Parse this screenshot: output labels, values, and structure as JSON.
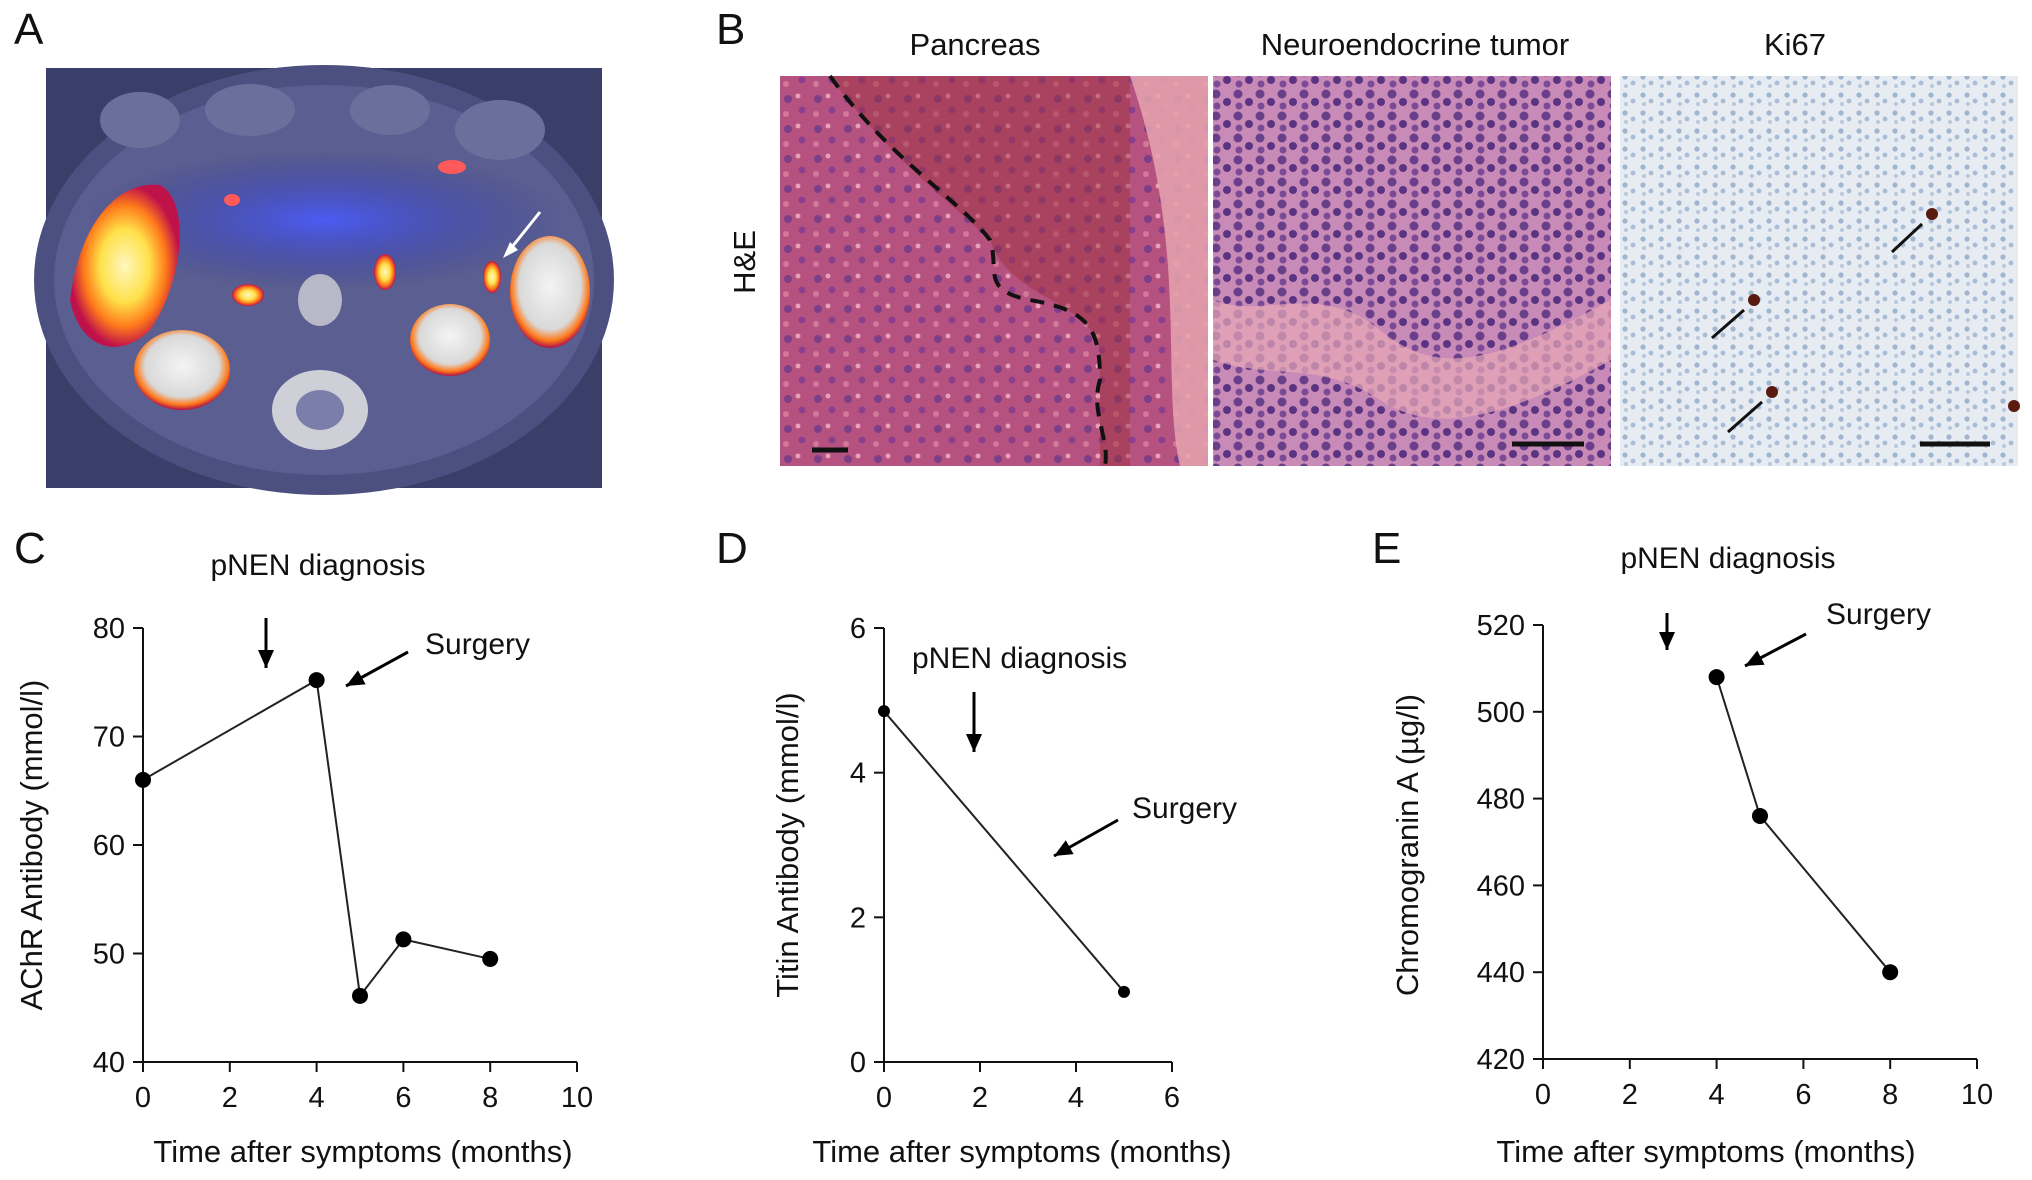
{
  "labels": {
    "A": "A",
    "B": "B",
    "C": "C",
    "D": "D",
    "E": "E"
  },
  "histology": {
    "row_label": "H&E",
    "columns": [
      "Pancreas",
      "Neuroendocrine tumor",
      "Ki67"
    ]
  },
  "colors": {
    "scan_bg": "#3a3f6a",
    "pancreas": "#b5527f",
    "tumor": "#8b4d92",
    "ki67": "#dfe6ee",
    "hot": "#ffe14a"
  },
  "chart_data": [
    {
      "id": "C",
      "type": "line",
      "x": [
        0,
        4,
        5,
        6,
        8
      ],
      "y": [
        66,
        75.2,
        46.1,
        51.3,
        49.5
      ],
      "xlabel": "Time after symptoms (months)",
      "ylabel": "AChR Antibody (mmol/l)",
      "xlim": [
        0,
        10
      ],
      "ylim": [
        40,
        80
      ],
      "xticks": [
        0,
        2,
        4,
        6,
        8,
        10
      ],
      "yticks": [
        40,
        50,
        60,
        70,
        80
      ],
      "annotations": [
        {
          "text": "pNEN diagnosis",
          "x": 2.9
        },
        {
          "text": "Surgery",
          "x": 4.6
        }
      ]
    },
    {
      "id": "D",
      "type": "line",
      "x": [
        0,
        5
      ],
      "y": [
        4.85,
        0.97
      ],
      "xlabel": "Time after symptoms (months)",
      "ylabel": "Titin Antibody (mmol/l)",
      "xlim": [
        0,
        6
      ],
      "ylim": [
        0,
        6
      ],
      "xticks": [
        0,
        2,
        4,
        6
      ],
      "yticks": [
        0,
        2,
        4,
        6
      ],
      "annotations": [
        {
          "text": "pNEN diagnosis",
          "x": 1.9
        },
        {
          "text": "Surgery",
          "x": 3.5
        }
      ]
    },
    {
      "id": "E",
      "type": "line",
      "x": [
        4,
        5,
        8
      ],
      "y": [
        508,
        476,
        440
      ],
      "xlabel": "Time after symptoms (months)",
      "ylabel": "Chromogranin A (µg/l)",
      "xlim": [
        0,
        10
      ],
      "ylim": [
        420,
        520
      ],
      "xticks": [
        0,
        2,
        4,
        6,
        8,
        10
      ],
      "yticks": [
        420,
        440,
        460,
        480,
        500,
        520
      ],
      "annotations": [
        {
          "text": "pNEN diagnosis",
          "x": 2.9
        },
        {
          "text": "Surgery",
          "x": 4.3
        }
      ]
    }
  ]
}
